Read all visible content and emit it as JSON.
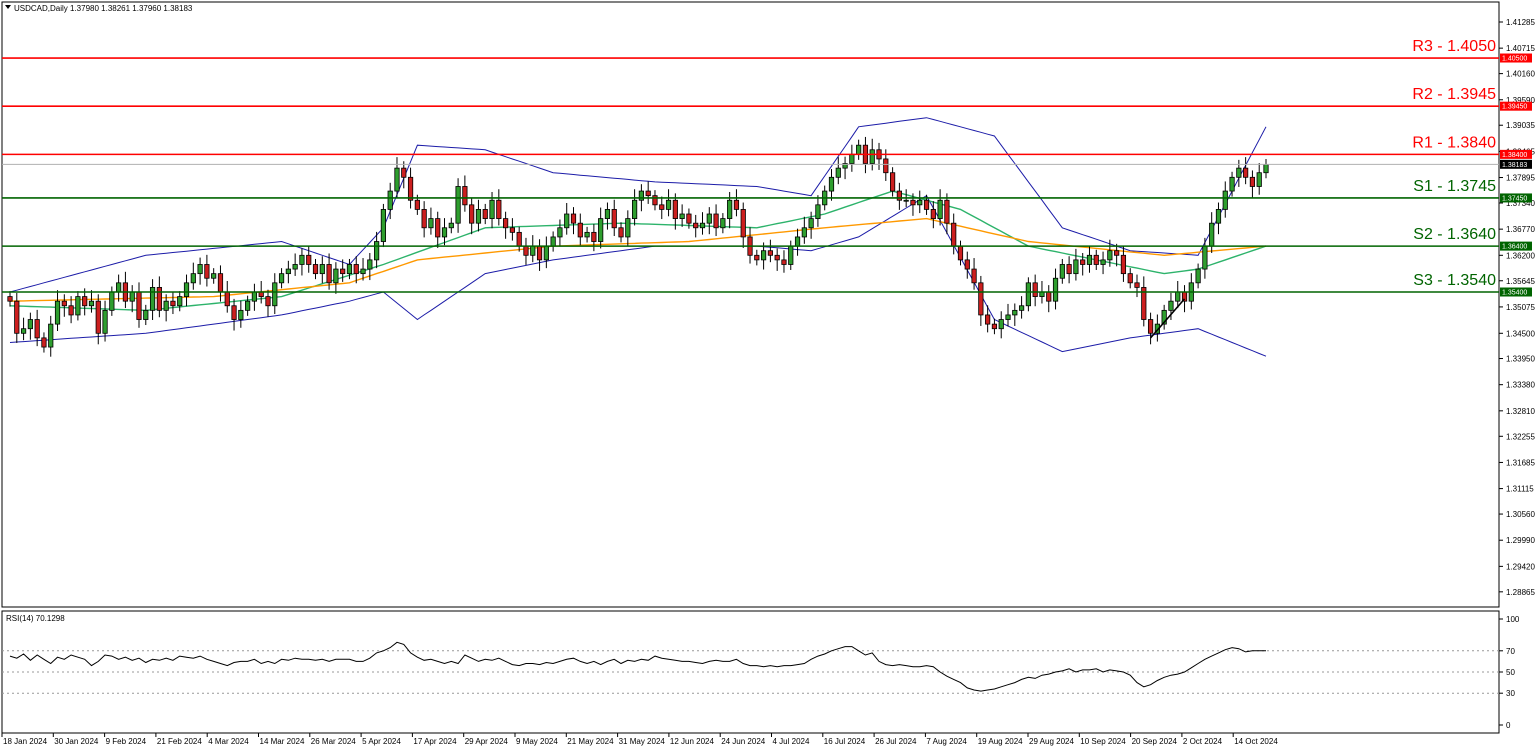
{
  "header": {
    "symbol": "USDCAD,Daily",
    "ohlc": "1.37980 1.38261 1.37960 1.38183",
    "current_price": "1.38183"
  },
  "rsi_panel": {
    "title": "RSI(14) 70.1298",
    "levels": [
      "100",
      "70",
      "50",
      "30",
      "0"
    ]
  },
  "colors": {
    "resistance": "#ff0000",
    "support": "#006400",
    "bollinger": "#1c1ca8",
    "ma_fast": "#2db36b",
    "ma_slow": "#ff9900",
    "candle": "#000000",
    "up_body": "#2e9e2e",
    "down_body": "#cc1f1f",
    "rsi_line": "#000000"
  },
  "chart_data": [
    {
      "type": "candlestick",
      "ylim": [
        1.28665,
        1.41285
      ],
      "y_ticks": [
        "1.41285",
        "1.40715",
        "1.40160",
        "1.39590",
        "1.39035",
        "1.38465",
        "1.37895",
        "1.37340",
        "1.36770",
        "1.36200",
        "1.35645",
        "1.35075",
        "1.34500",
        "1.33950",
        "1.33380",
        "1.32810",
        "1.32255",
        "1.31685",
        "1.31115",
        "1.30560",
        "1.29990",
        "1.29420",
        "1.28865"
      ],
      "x_labels": [
        "18 Jan 2024",
        "30 Jan 2024",
        "9 Feb 2024",
        "21 Feb 2024",
        "4 Mar 2024",
        "14 Mar 2024",
        "26 Mar 2024",
        "5 Apr 2024",
        "17 Apr 2024",
        "29 Apr 2024",
        "9 May 2024",
        "21 May 2024",
        "31 May 2024",
        "12 Jun 2024",
        "24 Jun 2024",
        "4 Jul 2024",
        "16 Jul 2024",
        "26 Jul 2024",
        "7 Aug 2024",
        "19 Aug 2024",
        "29 Aug 2024",
        "10 Sep 2024",
        "20 Sep 2024",
        "2 Oct 2024",
        "14 Oct 2024"
      ],
      "levels": [
        {
          "label": "R3 - 1.4050",
          "value": 1.405,
          "tag": "1.40500",
          "kind": "resistance"
        },
        {
          "label": "R2 - 1.3945",
          "value": 1.3945,
          "tag": "1.39450",
          "kind": "resistance"
        },
        {
          "label": "R1 - 1.3840",
          "value": 1.384,
          "tag": "1.38400",
          "kind": "resistance"
        },
        {
          "label": "S1 - 1.3745",
          "value": 1.3745,
          "tag": "1.37450",
          "kind": "support"
        },
        {
          "label": "S2 - 1.3640",
          "value": 1.364,
          "tag": "1.36400",
          "kind": "support"
        },
        {
          "label": "S3 - 1.3540",
          "value": 1.354,
          "tag": "1.35400",
          "kind": "support"
        }
      ],
      "price_path": [
        [
          0,
          1.352
        ],
        [
          1,
          1.345
        ],
        [
          2,
          1.346
        ],
        [
          3,
          1.348
        ],
        [
          4,
          1.344
        ],
        [
          5,
          1.342
        ],
        [
          6,
          1.347
        ],
        [
          7,
          1.352
        ],
        [
          8,
          1.351
        ],
        [
          9,
          1.349
        ],
        [
          10,
          1.353
        ],
        [
          11,
          1.351
        ],
        [
          12,
          1.352
        ],
        [
          13,
          1.345
        ],
        [
          14,
          1.35
        ],
        [
          15,
          1.354
        ],
        [
          16,
          1.356
        ],
        [
          17,
          1.352
        ],
        [
          18,
          1.354
        ],
        [
          19,
          1.348
        ],
        [
          20,
          1.35
        ],
        [
          21,
          1.355
        ],
        [
          22,
          1.35
        ],
        [
          23,
          1.352
        ],
        [
          24,
          1.351
        ],
        [
          25,
          1.353
        ],
        [
          26,
          1.356
        ],
        [
          27,
          1.358
        ],
        [
          28,
          1.36
        ],
        [
          29,
          1.357
        ],
        [
          30,
          1.358
        ],
        [
          31,
          1.354
        ],
        [
          32,
          1.351
        ],
        [
          33,
          1.348
        ],
        [
          34,
          1.35
        ],
        [
          35,
          1.352
        ],
        [
          36,
          1.354
        ],
        [
          37,
          1.353
        ],
        [
          38,
          1.351
        ],
        [
          39,
          1.356
        ],
        [
          40,
          1.358
        ],
        [
          41,
          1.359
        ],
        [
          42,
          1.36
        ],
        [
          43,
          1.362
        ],
        [
          44,
          1.36
        ],
        [
          45,
          1.358
        ],
        [
          46,
          1.36
        ],
        [
          47,
          1.356
        ],
        [
          48,
          1.359
        ],
        [
          49,
          1.358
        ],
        [
          50,
          1.36
        ],
        [
          51,
          1.358
        ],
        [
          52,
          1.359
        ],
        [
          53,
          1.361
        ],
        [
          54,
          1.365
        ],
        [
          55,
          1.372
        ],
        [
          56,
          1.376
        ],
        [
          57,
          1.381
        ],
        [
          58,
          1.379
        ],
        [
          59,
          1.374
        ],
        [
          60,
          1.372
        ],
        [
          61,
          1.368
        ],
        [
          62,
          1.37
        ],
        [
          63,
          1.366
        ],
        [
          64,
          1.368
        ],
        [
          65,
          1.369
        ],
        [
          66,
          1.377
        ],
        [
          67,
          1.373
        ],
        [
          68,
          1.369
        ],
        [
          69,
          1.372
        ],
        [
          70,
          1.37
        ],
        [
          71,
          1.374
        ],
        [
          72,
          1.37
        ],
        [
          73,
          1.368
        ],
        [
          74,
          1.367
        ],
        [
          75,
          1.364
        ],
        [
          76,
          1.362
        ],
        [
          77,
          1.364
        ],
        [
          78,
          1.361
        ],
        [
          79,
          1.364
        ],
        [
          80,
          1.366
        ],
        [
          81,
          1.368
        ],
        [
          82,
          1.371
        ],
        [
          83,
          1.369
        ],
        [
          84,
          1.366
        ],
        [
          85,
          1.367
        ],
        [
          86,
          1.365
        ],
        [
          87,
          1.37
        ],
        [
          88,
          1.372
        ],
        [
          89,
          1.368
        ],
        [
          90,
          1.366
        ],
        [
          91,
          1.37
        ],
        [
          92,
          1.374
        ],
        [
          93,
          1.376
        ],
        [
          94,
          1.375
        ],
        [
          95,
          1.373
        ],
        [
          96,
          1.372
        ],
        [
          97,
          1.374
        ],
        [
          98,
          1.37
        ],
        [
          99,
          1.371
        ],
        [
          100,
          1.369
        ],
        [
          101,
          1.368
        ],
        [
          102,
          1.369
        ],
        [
          103,
          1.371
        ],
        [
          104,
          1.368
        ],
        [
          105,
          1.37
        ],
        [
          106,
          1.374
        ],
        [
          107,
          1.372
        ],
        [
          108,
          1.366
        ],
        [
          109,
          1.362
        ],
        [
          110,
          1.361
        ],
        [
          111,
          1.363
        ],
        [
          112,
          1.362
        ],
        [
          113,
          1.361
        ],
        [
          114,
          1.36
        ],
        [
          115,
          1.364
        ],
        [
          116,
          1.366
        ],
        [
          117,
          1.368
        ],
        [
          118,
          1.37
        ],
        [
          119,
          1.373
        ],
        [
          120,
          1.376
        ],
        [
          121,
          1.379
        ],
        [
          122,
          1.381
        ],
        [
          123,
          1.382
        ],
        [
          124,
          1.384
        ],
        [
          125,
          1.386
        ],
        [
          126,
          1.382
        ],
        [
          127,
          1.385
        ],
        [
          128,
          1.383
        ],
        [
          129,
          1.38
        ],
        [
          130,
          1.376
        ],
        [
          131,
          1.374
        ],
        [
          132,
          1.374
        ],
        [
          133,
          1.373
        ],
        [
          134,
          1.374
        ],
        [
          135,
          1.372
        ],
        [
          136,
          1.37
        ],
        [
          137,
          1.374
        ],
        [
          138,
          1.369
        ],
        [
          139,
          1.364
        ],
        [
          140,
          1.361
        ],
        [
          141,
          1.359
        ],
        [
          142,
          1.356
        ],
        [
          143,
          1.349
        ],
        [
          144,
          1.347
        ],
        [
          145,
          1.346
        ],
        [
          146,
          1.348
        ],
        [
          147,
          1.349
        ],
        [
          148,
          1.35
        ],
        [
          149,
          1.351
        ],
        [
          150,
          1.356
        ],
        [
          151,
          1.353
        ],
        [
          152,
          1.354
        ],
        [
          153,
          1.352
        ],
        [
          154,
          1.357
        ],
        [
          155,
          1.36
        ],
        [
          156,
          1.358
        ],
        [
          157,
          1.361
        ],
        [
          158,
          1.36
        ],
        [
          159,
          1.362
        ],
        [
          160,
          1.36
        ],
        [
          161,
          1.361
        ],
        [
          162,
          1.363
        ],
        [
          163,
          1.362
        ],
        [
          164,
          1.358
        ],
        [
          165,
          1.356
        ],
        [
          166,
          1.355
        ],
        [
          167,
          1.348
        ],
        [
          168,
          1.345
        ],
        [
          169,
          1.347
        ],
        [
          170,
          1.35
        ],
        [
          171,
          1.352
        ],
        [
          172,
          1.354
        ],
        [
          173,
          1.352
        ],
        [
          174,
          1.356
        ],
        [
          175,
          1.359
        ],
        [
          176,
          1.364
        ],
        [
          177,
          1.369
        ],
        [
          178,
          1.372
        ],
        [
          179,
          1.376
        ],
        [
          180,
          1.379
        ],
        [
          181,
          1.381
        ],
        [
          182,
          1.379
        ],
        [
          183,
          1.377
        ],
        [
          184,
          1.38
        ],
        [
          185,
          1.3818
        ]
      ],
      "bollinger_upper": [
        [
          0,
          1.354
        ],
        [
          20,
          1.362
        ],
        [
          40,
          1.365
        ],
        [
          50,
          1.36
        ],
        [
          55,
          1.368
        ],
        [
          60,
          1.386
        ],
        [
          70,
          1.385
        ],
        [
          80,
          1.38
        ],
        [
          95,
          1.378
        ],
        [
          110,
          1.377
        ],
        [
          118,
          1.375
        ],
        [
          125,
          1.39
        ],
        [
          135,
          1.392
        ],
        [
          145,
          1.388
        ],
        [
          155,
          1.368
        ],
        [
          165,
          1.363
        ],
        [
          175,
          1.362
        ],
        [
          185,
          1.39
        ]
      ],
      "bollinger_lower": [
        [
          0,
          1.343
        ],
        [
          20,
          1.345
        ],
        [
          40,
          1.349
        ],
        [
          50,
          1.352
        ],
        [
          55,
          1.354
        ],
        [
          60,
          1.348
        ],
        [
          70,
          1.358
        ],
        [
          80,
          1.361
        ],
        [
          95,
          1.364
        ],
        [
          110,
          1.364
        ],
        [
          118,
          1.363
        ],
        [
          125,
          1.366
        ],
        [
          135,
          1.375
        ],
        [
          145,
          1.348
        ],
        [
          155,
          1.341
        ],
        [
          165,
          1.344
        ],
        [
          175,
          1.346
        ],
        [
          185,
          1.34
        ]
      ],
      "ma_fast": [
        [
          0,
          1.351
        ],
        [
          20,
          1.35
        ],
        [
          40,
          1.353
        ],
        [
          55,
          1.36
        ],
        [
          70,
          1.368
        ],
        [
          90,
          1.369
        ],
        [
          110,
          1.368
        ],
        [
          120,
          1.371
        ],
        [
          130,
          1.376
        ],
        [
          140,
          1.372
        ],
        [
          150,
          1.364
        ],
        [
          160,
          1.361
        ],
        [
          170,
          1.358
        ],
        [
          175,
          1.359
        ],
        [
          185,
          1.364
        ]
      ],
      "ma_slow": [
        [
          0,
          1.352
        ],
        [
          30,
          1.353
        ],
        [
          50,
          1.356
        ],
        [
          60,
          1.361
        ],
        [
          80,
          1.364
        ],
        [
          100,
          1.365
        ],
        [
          120,
          1.368
        ],
        [
          135,
          1.37
        ],
        [
          150,
          1.365
        ],
        [
          170,
          1.362
        ],
        [
          185,
          1.364
        ]
      ]
    },
    {
      "type": "line",
      "ylim": [
        0,
        100
      ],
      "values": [
        65,
        63,
        67,
        61,
        66,
        62,
        58,
        64,
        62,
        66,
        64,
        62,
        56,
        60,
        66,
        65,
        62,
        64,
        61,
        63,
        59,
        62,
        61,
        63,
        61,
        65,
        64,
        63,
        65,
        62,
        60,
        58,
        56,
        59,
        60,
        60,
        62,
        58,
        60,
        58,
        62,
        61,
        63,
        62,
        62,
        61,
        62,
        60,
        62,
        62,
        62,
        60,
        60,
        63,
        68,
        70,
        73,
        78,
        76,
        68,
        64,
        61,
        62,
        60,
        58,
        60,
        58,
        66,
        63,
        60,
        62,
        61,
        63,
        60,
        57,
        56,
        58,
        58,
        57,
        59,
        58,
        60,
        62,
        63,
        60,
        58,
        60,
        57,
        60,
        62,
        58,
        61,
        60,
        62,
        61,
        65,
        63,
        62,
        61,
        60,
        60,
        59,
        58,
        60,
        61,
        60,
        60,
        62,
        58,
        56,
        56,
        55,
        56,
        55,
        56,
        56,
        57,
        58,
        62,
        65,
        67,
        70,
        72,
        74,
        74,
        70,
        66,
        68,
        60,
        57,
        56,
        57,
        56,
        55,
        55,
        56,
        55,
        50,
        46,
        43,
        40,
        35,
        33,
        32,
        33,
        34,
        36,
        38,
        40,
        43,
        45,
        44,
        47,
        48,
        50,
        51,
        53,
        50,
        52,
        52,
        53,
        50,
        52,
        51,
        50,
        47,
        40,
        36,
        38,
        42,
        45,
        47,
        48,
        50,
        54,
        58,
        62,
        65,
        68,
        71,
        73,
        72,
        69,
        70,
        70,
        70
      ]
    }
  ]
}
